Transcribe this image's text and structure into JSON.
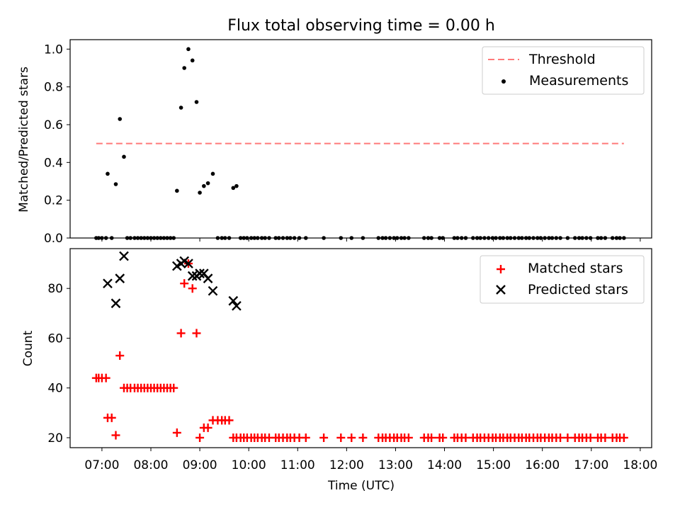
{
  "chart_data": [
    {
      "type": "scatter",
      "title": "Flux total observing time = 0.00 h",
      "xlabel": "",
      "ylabel": "Matched/Predicted stars",
      "xlim": [
        "06:21",
        "18:14"
      ],
      "ylim": [
        0,
        1.05
      ],
      "yticks": [
        "0.0",
        "0.2",
        "0.4",
        "0.6",
        "0.8",
        "1.0"
      ],
      "legend_position": "top-right",
      "threshold": {
        "name": "Threshold",
        "y": 0.5,
        "x_start": "06:53",
        "x_end": "17:40",
        "color": "#ff7a7a",
        "style": "dashed"
      },
      "series": [
        {
          "name": "Measurements",
          "color": "#000000",
          "marker": "dot",
          "points": [
            [
              "06:53",
              0
            ],
            [
              "06:56",
              0
            ],
            [
              "07:00",
              0
            ],
            [
              "07:05",
              0
            ],
            [
              "07:07",
              0.34
            ],
            [
              "07:12",
              0
            ],
            [
              "07:17",
              0.285
            ],
            [
              "07:22",
              0.63
            ],
            [
              "07:27",
              0.43
            ],
            [
              "07:31",
              0
            ],
            [
              "07:35",
              0
            ],
            [
              "07:40",
              0
            ],
            [
              "07:44",
              0
            ],
            [
              "07:48",
              0
            ],
            [
              "07:52",
              0
            ],
            [
              "07:56",
              0
            ],
            [
              "08:00",
              0
            ],
            [
              "08:04",
              0
            ],
            [
              "08:08",
              0
            ],
            [
              "08:12",
              0
            ],
            [
              "08:16",
              0
            ],
            [
              "08:20",
              0
            ],
            [
              "08:24",
              0
            ],
            [
              "08:28",
              0
            ],
            [
              "08:32",
              0.25
            ],
            [
              "08:37",
              0.69
            ],
            [
              "08:41",
              0.9
            ],
            [
              "08:46",
              1.0
            ],
            [
              "08:51",
              0.94
            ],
            [
              "08:56",
              0.72
            ],
            [
              "09:00",
              0.24
            ],
            [
              "09:05",
              0.275
            ],
            [
              "09:10",
              0.29
            ],
            [
              "09:16",
              0.34
            ],
            [
              "09:22",
              0
            ],
            [
              "09:27",
              0
            ],
            [
              "09:31",
              0
            ],
            [
              "09:36",
              0
            ],
            [
              "09:41",
              0.265
            ],
            [
              "09:45",
              0.275
            ],
            [
              "09:50",
              0
            ],
            [
              "09:54",
              0
            ],
            [
              "09:58",
              0
            ],
            [
              "10:03",
              0
            ],
            [
              "10:07",
              0
            ],
            [
              "10:11",
              0
            ],
            [
              "10:16",
              0
            ],
            [
              "10:20",
              0
            ],
            [
              "10:25",
              0
            ],
            [
              "10:33",
              0
            ],
            [
              "10:37",
              0
            ],
            [
              "10:42",
              0
            ],
            [
              "10:47",
              0
            ],
            [
              "10:51",
              0
            ],
            [
              "10:56",
              0
            ],
            [
              "11:02",
              0
            ],
            [
              "11:10",
              0
            ],
            [
              "11:32",
              0
            ],
            [
              "11:53",
              0
            ],
            [
              "12:06",
              0
            ],
            [
              "12:20",
              0
            ],
            [
              "12:39",
              0
            ],
            [
              "12:44",
              0
            ],
            [
              "12:48",
              0
            ],
            [
              "12:53",
              0
            ],
            [
              "12:58",
              0
            ],
            [
              "13:02",
              0
            ],
            [
              "13:07",
              0
            ],
            [
              "13:11",
              0
            ],
            [
              "13:16",
              0
            ],
            [
              "13:35",
              0
            ],
            [
              "13:40",
              0
            ],
            [
              "13:44",
              0
            ],
            [
              "13:54",
              0
            ],
            [
              "13:58",
              0
            ],
            [
              "14:12",
              0
            ],
            [
              "14:16",
              0
            ],
            [
              "14:21",
              0
            ],
            [
              "14:26",
              0
            ],
            [
              "14:35",
              0
            ],
            [
              "14:40",
              0
            ],
            [
              "14:44",
              0
            ],
            [
              "14:49",
              0
            ],
            [
              "14:54",
              0
            ],
            [
              "14:59",
              0
            ],
            [
              "15:03",
              0
            ],
            [
              "15:08",
              0
            ],
            [
              "15:12",
              0
            ],
            [
              "15:17",
              0
            ],
            [
              "15:21",
              0
            ],
            [
              "15:26",
              0
            ],
            [
              "15:31",
              0
            ],
            [
              "15:35",
              0
            ],
            [
              "15:40",
              0
            ],
            [
              "15:44",
              0
            ],
            [
              "15:49",
              0
            ],
            [
              "15:54",
              0
            ],
            [
              "15:58",
              0
            ],
            [
              "16:03",
              0
            ],
            [
              "16:08",
              0
            ],
            [
              "16:12",
              0
            ],
            [
              "16:17",
              0
            ],
            [
              "16:22",
              0
            ],
            [
              "16:31",
              0
            ],
            [
              "16:40",
              0
            ],
            [
              "16:45",
              0
            ],
            [
              "16:49",
              0
            ],
            [
              "16:54",
              0
            ],
            [
              "16:59",
              0
            ],
            [
              "17:08",
              0
            ],
            [
              "17:12",
              0
            ],
            [
              "17:17",
              0
            ],
            [
              "17:26",
              0
            ],
            [
              "17:31",
              0
            ],
            [
              "17:35",
              0
            ],
            [
              "17:40",
              0
            ]
          ]
        }
      ]
    },
    {
      "type": "scatter",
      "title": "",
      "xlabel": "Time (UTC)",
      "ylabel": "Count",
      "xlim": [
        "06:21",
        "18:14"
      ],
      "ylim": [
        16,
        96
      ],
      "xticks": [
        "07:00",
        "08:00",
        "09:00",
        "10:00",
        "11:00",
        "12:00",
        "13:00",
        "14:00",
        "15:00",
        "16:00",
        "17:00",
        "18:00"
      ],
      "yticks": [
        "20",
        "40",
        "60",
        "80"
      ],
      "legend_position": "top-right",
      "series": [
        {
          "name": "Matched stars",
          "color": "#ff0000",
          "marker": "plus",
          "points": [
            [
              "06:53",
              44
            ],
            [
              "06:56",
              44
            ],
            [
              "07:00",
              44
            ],
            [
              "07:05",
              44
            ],
            [
              "07:07",
              28
            ],
            [
              "07:12",
              28
            ],
            [
              "07:17",
              21
            ],
            [
              "07:22",
              53
            ],
            [
              "07:27",
              40
            ],
            [
              "07:31",
              40
            ],
            [
              "07:35",
              40
            ],
            [
              "07:40",
              40
            ],
            [
              "07:44",
              40
            ],
            [
              "07:48",
              40
            ],
            [
              "07:52",
              40
            ],
            [
              "07:56",
              40
            ],
            [
              "08:00",
              40
            ],
            [
              "08:04",
              40
            ],
            [
              "08:08",
              40
            ],
            [
              "08:12",
              40
            ],
            [
              "08:16",
              40
            ],
            [
              "08:20",
              40
            ],
            [
              "08:24",
              40
            ],
            [
              "08:28",
              40
            ],
            [
              "08:32",
              22
            ],
            [
              "08:37",
              62
            ],
            [
              "08:41",
              82
            ],
            [
              "08:46",
              90
            ],
            [
              "08:51",
              80
            ],
            [
              "08:56",
              62
            ],
            [
              "09:00",
              20
            ],
            [
              "09:05",
              24
            ],
            [
              "09:10",
              24
            ],
            [
              "09:16",
              27
            ],
            [
              "09:22",
              27
            ],
            [
              "09:27",
              27
            ],
            [
              "09:31",
              27
            ],
            [
              "09:36",
              27
            ],
            [
              "09:41",
              20
            ],
            [
              "09:45",
              20
            ],
            [
              "09:50",
              20
            ],
            [
              "09:54",
              20
            ],
            [
              "09:58",
              20
            ],
            [
              "10:03",
              20
            ],
            [
              "10:07",
              20
            ],
            [
              "10:11",
              20
            ],
            [
              "10:16",
              20
            ],
            [
              "10:20",
              20
            ],
            [
              "10:25",
              20
            ],
            [
              "10:33",
              20
            ],
            [
              "10:37",
              20
            ],
            [
              "10:42",
              20
            ],
            [
              "10:47",
              20
            ],
            [
              "10:51",
              20
            ],
            [
              "10:56",
              20
            ],
            [
              "11:02",
              20
            ],
            [
              "11:10",
              20
            ],
            [
              "11:32",
              20
            ],
            [
              "11:53",
              20
            ],
            [
              "12:06",
              20
            ],
            [
              "12:20",
              20
            ],
            [
              "12:39",
              20
            ],
            [
              "12:44",
              20
            ],
            [
              "12:48",
              20
            ],
            [
              "12:53",
              20
            ],
            [
              "12:58",
              20
            ],
            [
              "13:02",
              20
            ],
            [
              "13:07",
              20
            ],
            [
              "13:11",
              20
            ],
            [
              "13:16",
              20
            ],
            [
              "13:35",
              20
            ],
            [
              "13:40",
              20
            ],
            [
              "13:44",
              20
            ],
            [
              "13:54",
              20
            ],
            [
              "13:58",
              20
            ],
            [
              "14:12",
              20
            ],
            [
              "14:16",
              20
            ],
            [
              "14:21",
              20
            ],
            [
              "14:26",
              20
            ],
            [
              "14:35",
              20
            ],
            [
              "14:40",
              20
            ],
            [
              "14:44",
              20
            ],
            [
              "14:49",
              20
            ],
            [
              "14:54",
              20
            ],
            [
              "14:59",
              20
            ],
            [
              "15:03",
              20
            ],
            [
              "15:08",
              20
            ],
            [
              "15:12",
              20
            ],
            [
              "15:17",
              20
            ],
            [
              "15:21",
              20
            ],
            [
              "15:26",
              20
            ],
            [
              "15:31",
              20
            ],
            [
              "15:35",
              20
            ],
            [
              "15:40",
              20
            ],
            [
              "15:44",
              20
            ],
            [
              "15:49",
              20
            ],
            [
              "15:54",
              20
            ],
            [
              "15:58",
              20
            ],
            [
              "16:03",
              20
            ],
            [
              "16:08",
              20
            ],
            [
              "16:12",
              20
            ],
            [
              "16:17",
              20
            ],
            [
              "16:22",
              20
            ],
            [
              "16:31",
              20
            ],
            [
              "16:40",
              20
            ],
            [
              "16:45",
              20
            ],
            [
              "16:49",
              20
            ],
            [
              "16:54",
              20
            ],
            [
              "16:59",
              20
            ],
            [
              "17:08",
              20
            ],
            [
              "17:12",
              20
            ],
            [
              "17:17",
              20
            ],
            [
              "17:26",
              20
            ],
            [
              "17:31",
              20
            ],
            [
              "17:35",
              20
            ],
            [
              "17:40",
              20
            ]
          ]
        },
        {
          "name": "Predicted stars",
          "color": "#000000",
          "marker": "x",
          "points": [
            [
              "07:07",
              82
            ],
            [
              "07:17",
              74
            ],
            [
              "07:22",
              84
            ],
            [
              "07:27",
              93
            ],
            [
              "08:32",
              89
            ],
            [
              "08:37",
              90
            ],
            [
              "08:41",
              91
            ],
            [
              "08:46",
              90
            ],
            [
              "08:51",
              85
            ],
            [
              "08:56",
              85
            ],
            [
              "09:00",
              86
            ],
            [
              "09:05",
              86
            ],
            [
              "09:10",
              84
            ],
            [
              "09:16",
              79
            ],
            [
              "09:41",
              75
            ],
            [
              "09:45",
              73
            ]
          ]
        }
      ]
    }
  ]
}
